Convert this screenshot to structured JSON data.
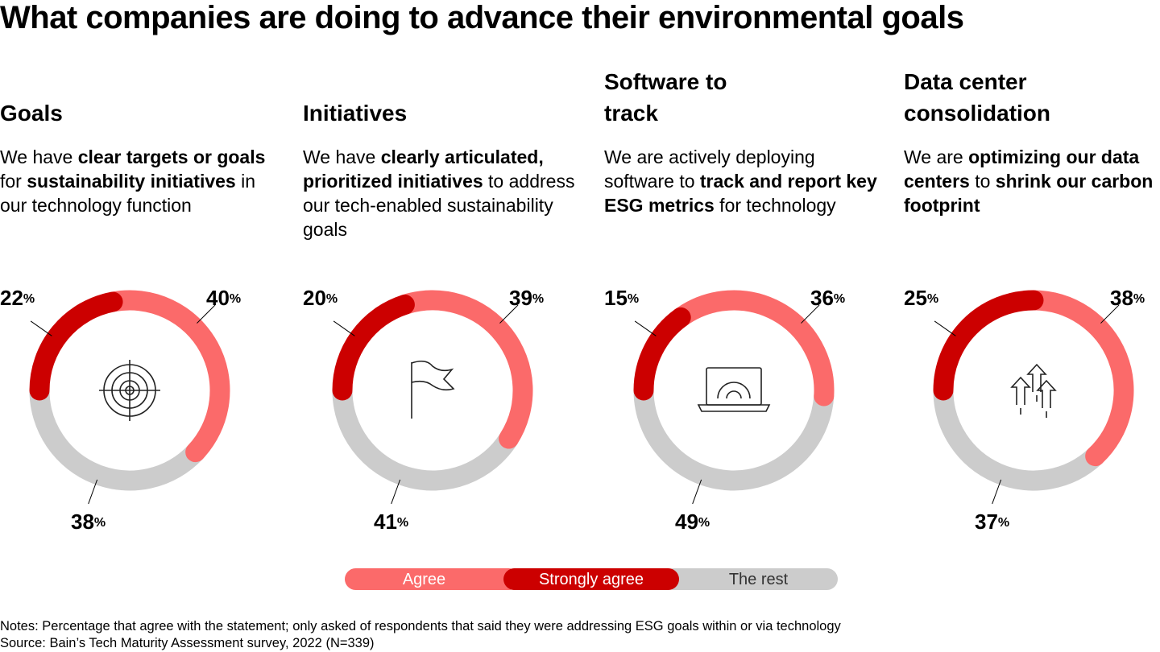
{
  "title": "What companies are doing to advance their environmental goals",
  "legend": [
    {
      "name": "Agree",
      "color": "#fb6a6a"
    },
    {
      "name": "Strongly agree",
      "color": "#cc0000"
    },
    {
      "name": "The rest",
      "color": "#cccccc"
    }
  ],
  "chart_data": [
    {
      "type": "donut",
      "title": "Goals",
      "description": [
        {
          "text": "We have ",
          "bold": false
        },
        {
          "text": "clear targets or goals",
          "bold": true
        },
        {
          "text": " for ",
          "bold": false
        },
        {
          "text": "sustainability initiatives",
          "bold": true
        },
        {
          "text": " in our technology function",
          "bold": false
        }
      ],
      "values": [
        40,
        22,
        38
      ],
      "value_labels": [
        "40%",
        "22%",
        "38%"
      ]
    },
    {
      "type": "donut",
      "title": "Initiatives",
      "description": [
        {
          "text": "We have ",
          "bold": false
        },
        {
          "text": "clearly articulated, prioritized initiatives",
          "bold": true
        },
        {
          "text": " to address our tech-enabled sustainability goals",
          "bold": false
        }
      ],
      "values": [
        39,
        20,
        41
      ],
      "value_labels": [
        "39%",
        "20%",
        "41%"
      ]
    },
    {
      "type": "donut",
      "title": "Software to track",
      "description": [
        {
          "text": "We are actively deploying software to ",
          "bold": false
        },
        {
          "text": "track and report key ESG metrics",
          "bold": true
        },
        {
          "text": " for technology",
          "bold": false
        }
      ],
      "values": [
        36,
        15,
        49
      ],
      "value_labels": [
        "36%",
        "15%",
        "49%"
      ]
    },
    {
      "type": "donut",
      "title": "Data center consolidation",
      "description": [
        {
          "text": "We are ",
          "bold": false
        },
        {
          "text": "optimizing our data centers",
          "bold": true
        },
        {
          "text": " to ",
          "bold": false
        },
        {
          "text": "shrink our carbon footprint",
          "bold": true
        }
      ],
      "values": [
        38,
        25,
        37
      ],
      "value_labels": [
        "38%",
        "25%",
        "37%"
      ]
    }
  ],
  "notes": "Notes: Percentage that agree with the statement; only asked of respondents that said they were addressing ESG goals within or via technology",
  "source": "Source: Bain’s Tech Maturity Assessment survey, 2022 (N=339)"
}
